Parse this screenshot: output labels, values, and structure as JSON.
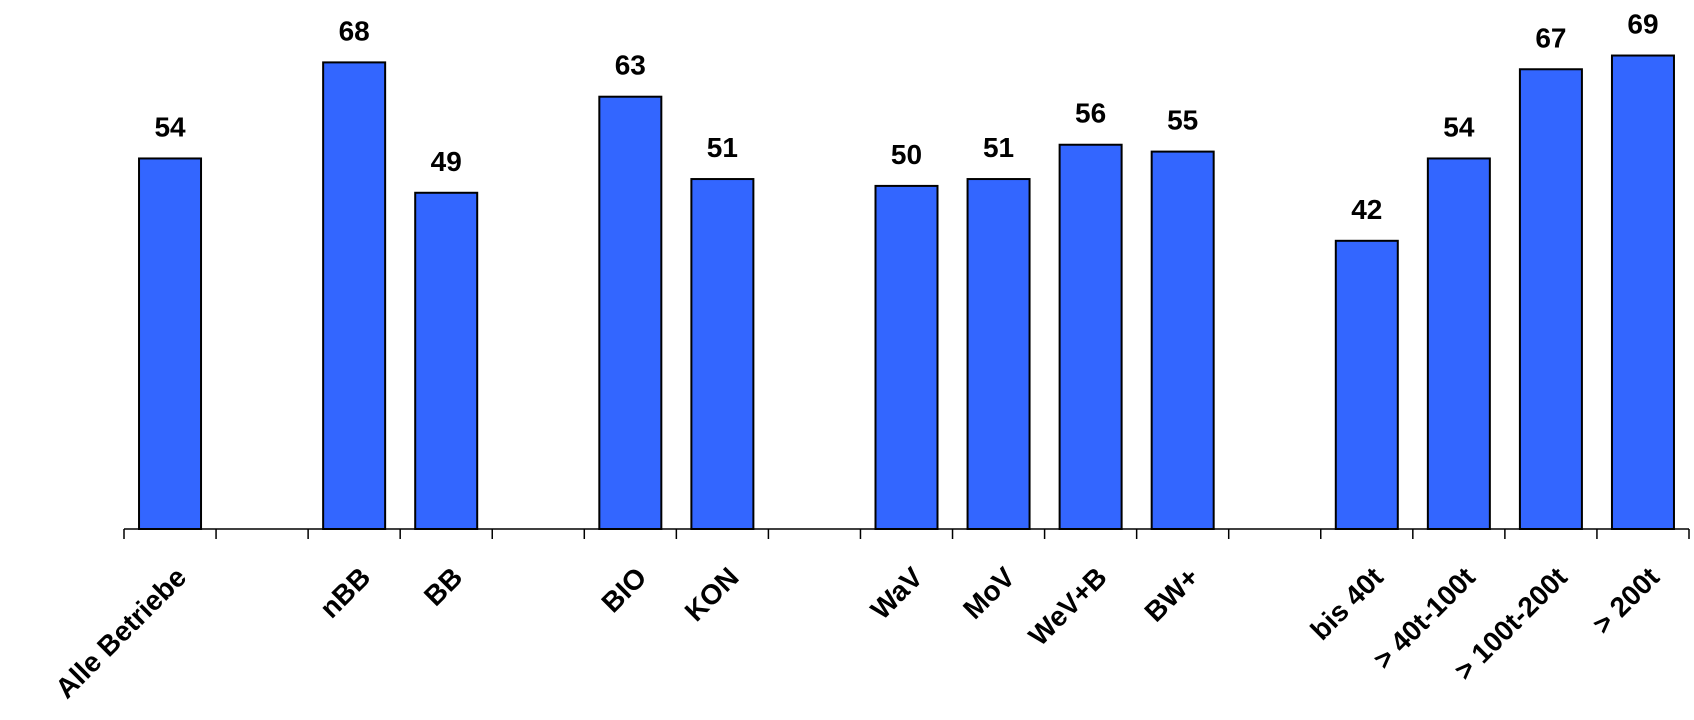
{
  "chart_data": {
    "type": "bar",
    "categories": [
      "Alle Betriebe",
      "",
      "nBB",
      "BB",
      "",
      "BIO",
      "KON",
      "",
      "WaV",
      "MoV",
      "WeV+B",
      "BW+",
      "",
      "bis 40t",
      "> 40t-100t",
      "> 100t-200t",
      "> 200t"
    ],
    "values": [
      54,
      null,
      68,
      49,
      null,
      63,
      51,
      null,
      50,
      51,
      56,
      55,
      null,
      42,
      54,
      67,
      69
    ],
    "title": "",
    "xlabel": "",
    "ylabel": "",
    "ylim": [
      0,
      76
    ],
    "grid": false,
    "legend": "none",
    "bar_color": "#3366ff"
  }
}
